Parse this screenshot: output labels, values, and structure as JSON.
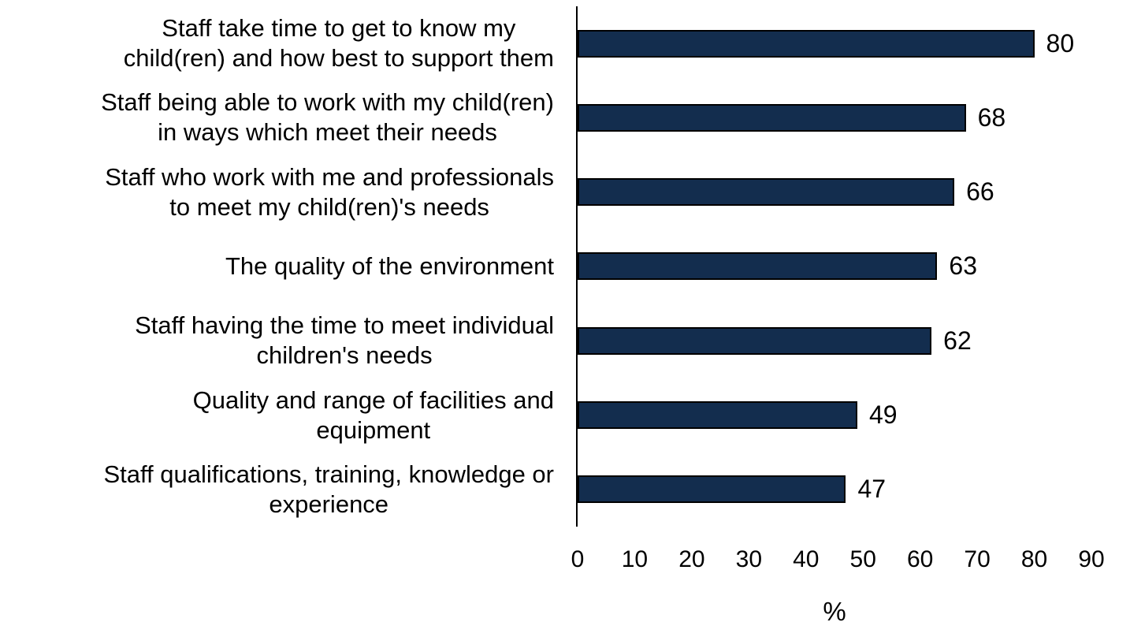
{
  "chart_data": {
    "type": "bar",
    "orientation": "horizontal",
    "title": "",
    "xlabel": "%",
    "ylabel": "",
    "xlim": [
      0,
      90
    ],
    "xticks": [
      0,
      10,
      20,
      30,
      40,
      50,
      60,
      70,
      80,
      90
    ],
    "grid": false,
    "legend": false,
    "bar_color": "#132D4E",
    "bar_border_color": "#000000",
    "categories": [
      "Staff take time to get to know my child(ren) and how best to support them",
      "Staff being able to work with my child(ren) in ways which meet their needs",
      "Staff who work with me and professionals to meet my child(ren)'s needs",
      "The quality of the environment",
      "Staff having the time to meet individual children's needs",
      "Quality and range of facilities and equipment",
      "Staff qualifications, training, knowledge or experience"
    ],
    "categories_lines": [
      [
        "Staff take time to get to know my",
        "child(ren) and how best to support them"
      ],
      [
        "Staff being able to work with my child(ren)",
        "in ways which meet their needs"
      ],
      [
        "Staff who work with me and professionals",
        "to meet my child(ren)'s needs"
      ],
      [
        "The quality of the environment"
      ],
      [
        "Staff having the time to meet individual",
        "children's needs"
      ],
      [
        "Quality and range of facilities and",
        "equipment"
      ],
      [
        "Staff qualifications, training, knowledge or",
        "experience"
      ]
    ],
    "values": [
      80,
      68,
      66,
      63,
      62,
      49,
      47
    ],
    "data_labels": [
      "80",
      "68",
      "66",
      "63",
      "62",
      "49",
      "47"
    ]
  }
}
